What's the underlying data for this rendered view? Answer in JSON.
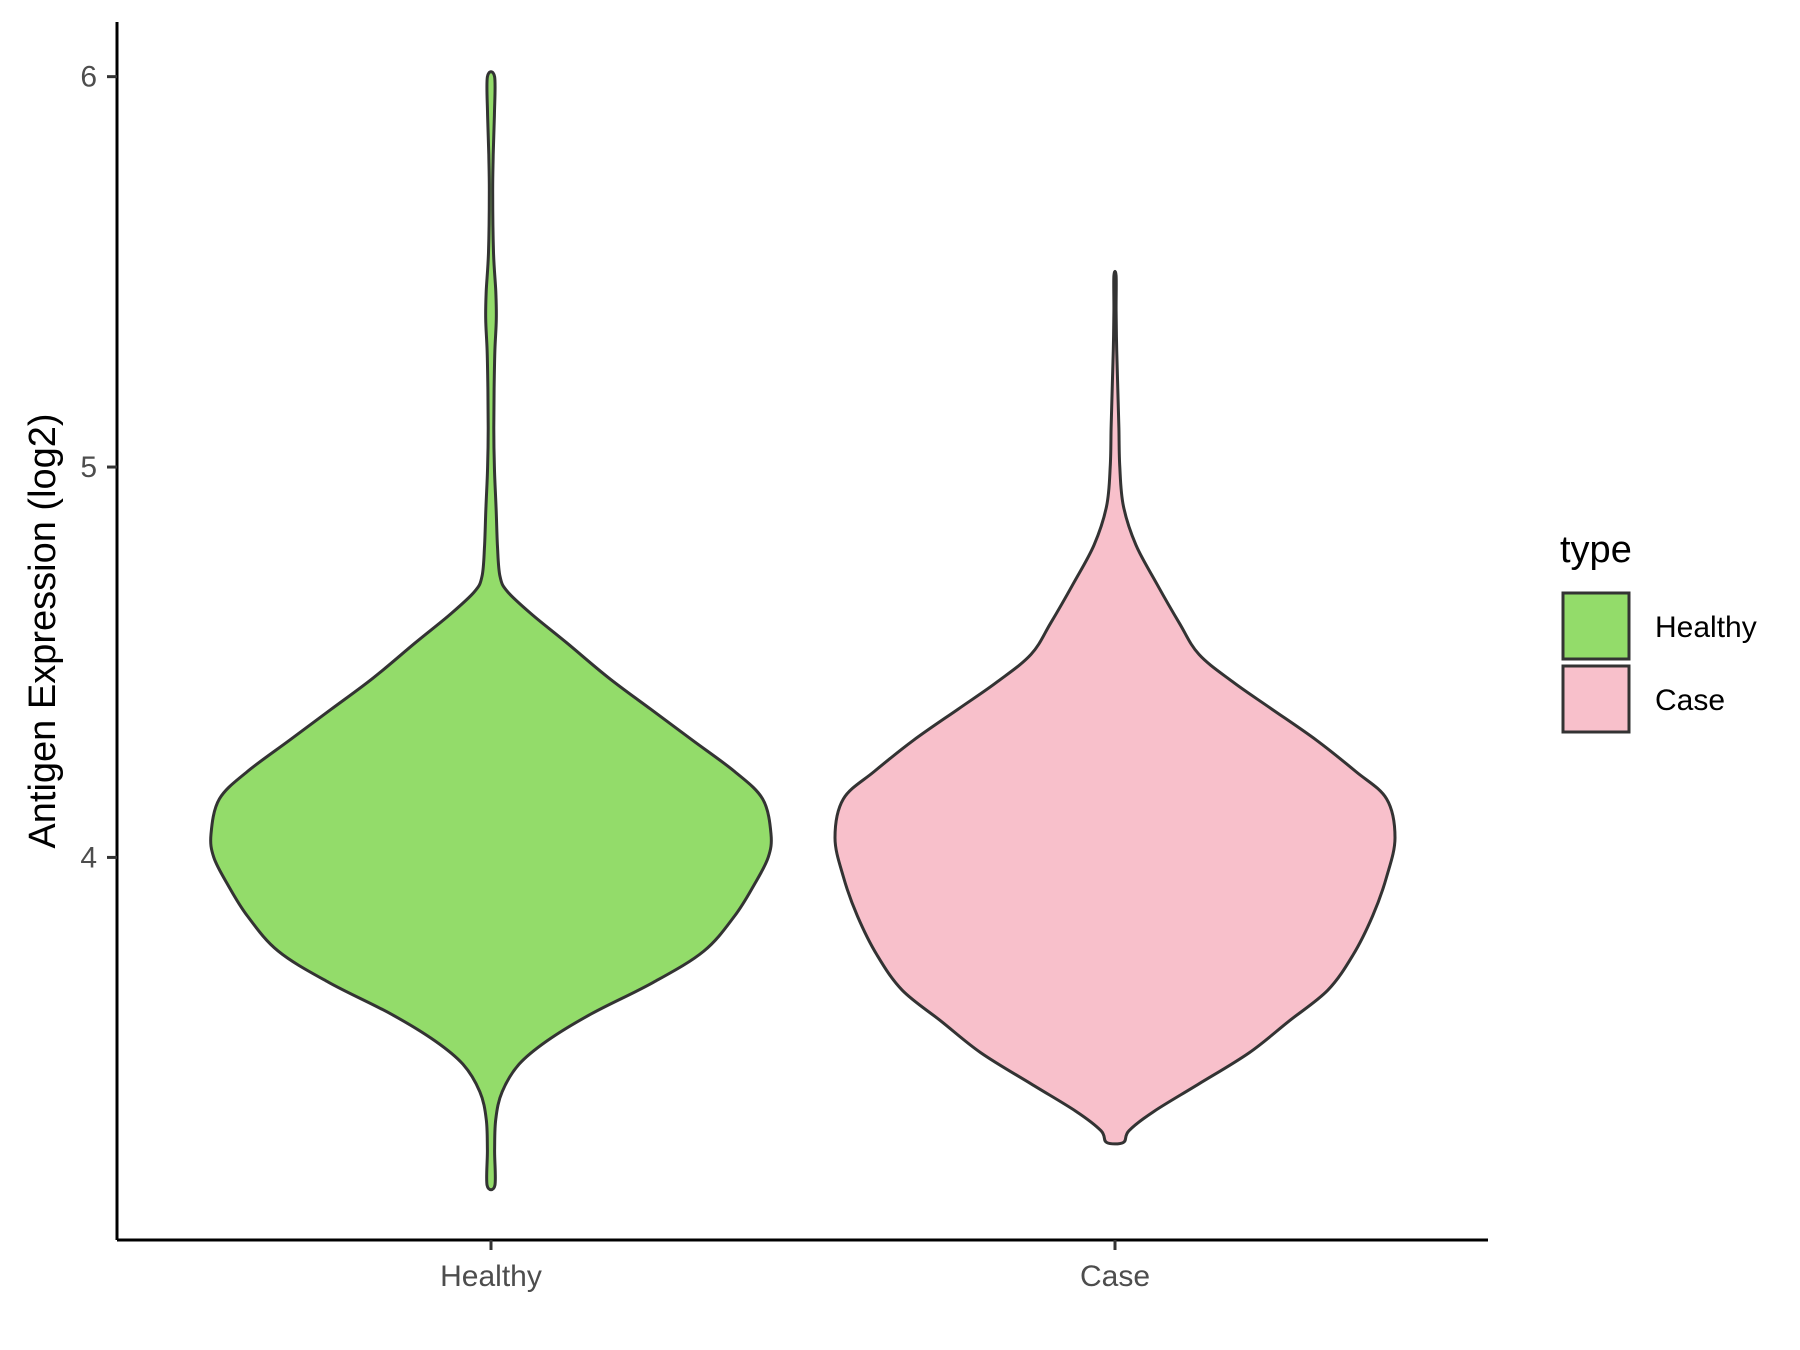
{
  "chart_data": {
    "type": "violin",
    "title": "",
    "xlabel": "",
    "ylabel": "Antigen Expression (log2)",
    "ylim": [
      3.02,
      6.14
    ],
    "yticks": [
      "4",
      "5",
      "6"
    ],
    "categories": [
      "Healthy",
      "Case"
    ],
    "grid": false,
    "legend": {
      "title": "type",
      "placement": "right",
      "items": [
        {
          "label": "Healthy",
          "color": "#93DC6A"
        },
        {
          "label": "Case",
          "color": "#F8C0CB"
        }
      ]
    },
    "series": [
      {
        "category": "Healthy",
        "color": "#93DC6A",
        "min": 3.16,
        "max": 6.0,
        "density_profile": [
          [
            3.16,
            0.014
          ],
          [
            3.25,
            0.013
          ],
          [
            3.33,
            0.017
          ],
          [
            3.4,
            0.04
          ],
          [
            3.47,
            0.1
          ],
          [
            3.53,
            0.2
          ],
          [
            3.6,
            0.36
          ],
          [
            3.68,
            0.58
          ],
          [
            3.76,
            0.76
          ],
          [
            3.85,
            0.87
          ],
          [
            3.93,
            0.94
          ],
          [
            4.0,
            0.99
          ],
          [
            4.06,
            1.0
          ],
          [
            4.15,
            0.97
          ],
          [
            4.22,
            0.87
          ],
          [
            4.3,
            0.72
          ],
          [
            4.38,
            0.57
          ],
          [
            4.46,
            0.42
          ],
          [
            4.55,
            0.27
          ],
          [
            4.62,
            0.15
          ],
          [
            4.68,
            0.06
          ],
          [
            4.72,
            0.032
          ],
          [
            4.8,
            0.023
          ],
          [
            4.9,
            0.018
          ],
          [
            5.0,
            0.012
          ],
          [
            5.1,
            0.01
          ],
          [
            5.2,
            0.011
          ],
          [
            5.3,
            0.014
          ],
          [
            5.38,
            0.019
          ],
          [
            5.45,
            0.017
          ],
          [
            5.55,
            0.009
          ],
          [
            5.7,
            0.006
          ],
          [
            5.8,
            0.008
          ],
          [
            5.9,
            0.012
          ],
          [
            6.0,
            0.013
          ]
        ]
      },
      {
        "category": "Case",
        "color": "#F8C0CB",
        "min": 3.27,
        "max": 5.49,
        "density_profile": [
          [
            3.27,
            0.03
          ],
          [
            3.3,
            0.05
          ],
          [
            3.35,
            0.14
          ],
          [
            3.42,
            0.3
          ],
          [
            3.5,
            0.48
          ],
          [
            3.58,
            0.62
          ],
          [
            3.66,
            0.76
          ],
          [
            3.75,
            0.85
          ],
          [
            3.85,
            0.92
          ],
          [
            3.95,
            0.97
          ],
          [
            4.05,
            1.0
          ],
          [
            4.15,
            0.97
          ],
          [
            4.22,
            0.86
          ],
          [
            4.3,
            0.72
          ],
          [
            4.38,
            0.56
          ],
          [
            4.45,
            0.42
          ],
          [
            4.52,
            0.3
          ],
          [
            4.6,
            0.23
          ],
          [
            4.7,
            0.15
          ],
          [
            4.8,
            0.075
          ],
          [
            4.9,
            0.03
          ],
          [
            5.0,
            0.017
          ],
          [
            5.1,
            0.014
          ],
          [
            5.2,
            0.01
          ],
          [
            5.3,
            0.006
          ],
          [
            5.4,
            0.004
          ],
          [
            5.49,
            0.004
          ]
        ]
      }
    ]
  }
}
